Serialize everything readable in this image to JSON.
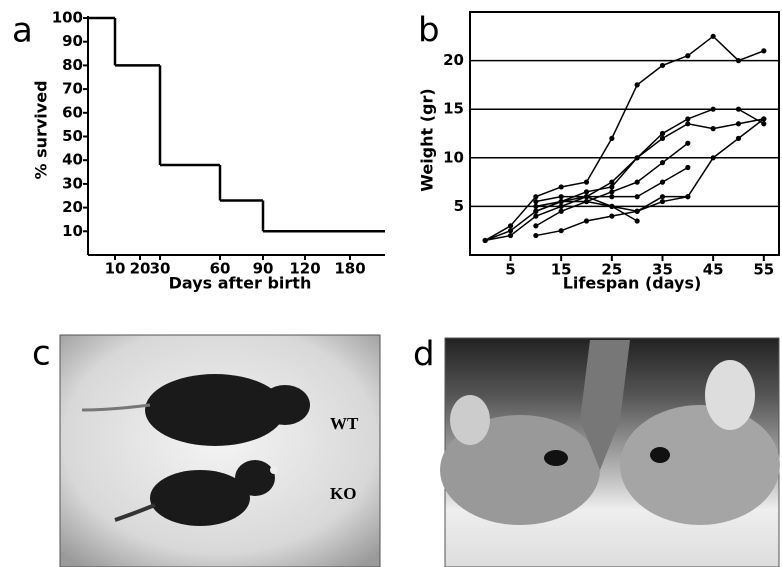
{
  "chart_data": [
    {
      "type": "step",
      "panel": "a",
      "ylabel": "% survived",
      "xlabel": "Days after birth",
      "color": "#000000",
      "x": [
        0,
        10,
        30,
        60,
        90
      ],
      "values": [
        100,
        80,
        38,
        23,
        10
      ],
      "xlim": [
        0,
        210
      ],
      "xticks": [
        10,
        20,
        30,
        60,
        90,
        120,
        180
      ],
      "ylim": [
        0,
        100
      ],
      "yticks": [
        10,
        20,
        30,
        40,
        50,
        60,
        70,
        80,
        90,
        100
      ]
    },
    {
      "type": "line",
      "panel": "b",
      "ylabel": "Weight (gr)",
      "xlabel": "Lifespan (days)",
      "color": "#000000",
      "grid": true,
      "xlim": [
        -3,
        58
      ],
      "xticks": [
        5,
        15,
        25,
        35,
        45,
        55
      ],
      "ylim": [
        0,
        25
      ],
      "yticks": [
        5,
        10,
        15,
        20
      ],
      "series": [
        {
          "x": [
            0,
            5,
            10,
            15,
            20,
            25,
            30,
            35,
            40,
            45,
            50,
            55
          ],
          "values": [
            1.5,
            3,
            6,
            7,
            7.5,
            12,
            17.5,
            19.5,
            20.5,
            22.5,
            20,
            21
          ]
        },
        {
          "x": [
            0,
            5,
            10,
            15,
            20,
            25,
            30,
            35,
            40,
            45,
            50,
            55
          ],
          "values": [
            1.5,
            2.5,
            4.5,
            5.5,
            6.5,
            7,
            10,
            12.5,
            14,
            15,
            15,
            13.5
          ]
        },
        {
          "x": [
            0,
            5,
            10,
            15,
            20,
            25,
            30,
            35,
            40,
            45,
            50,
            55
          ],
          "values": [
            1.5,
            2,
            4,
            5,
            6,
            7.5,
            10,
            12,
            13.5,
            13,
            13.5,
            14
          ]
        },
        {
          "x": [
            10,
            15,
            20,
            25,
            30,
            35,
            40,
            45,
            50,
            55
          ],
          "values": [
            2,
            2.5,
            3.5,
            4,
            4.5,
            5.5,
            6,
            10,
            12,
            14
          ]
        },
        {
          "x": [
            10,
            15,
            20,
            25,
            30,
            35,
            40
          ],
          "values": [
            3,
            4.5,
            5.5,
            6.5,
            7.5,
            9.5,
            11.5
          ]
        },
        {
          "x": [
            10,
            15,
            20,
            25,
            30,
            35,
            40
          ],
          "values": [
            4.5,
            5.5,
            6,
            6,
            6,
            7.5,
            9
          ]
        },
        {
          "x": [
            10,
            15,
            20,
            25,
            30,
            35,
            40
          ],
          "values": [
            5.5,
            6,
            6,
            5,
            4.5,
            6,
            6
          ]
        },
        {
          "x": [
            10,
            15,
            20,
            25,
            30
          ],
          "values": [
            5,
            5.5,
            5.5,
            5,
            3.5
          ]
        }
      ]
    }
  ],
  "photos": [
    {
      "panel": "c",
      "labels": [
        "WT",
        "KO"
      ]
    },
    {
      "panel": "d"
    }
  ]
}
